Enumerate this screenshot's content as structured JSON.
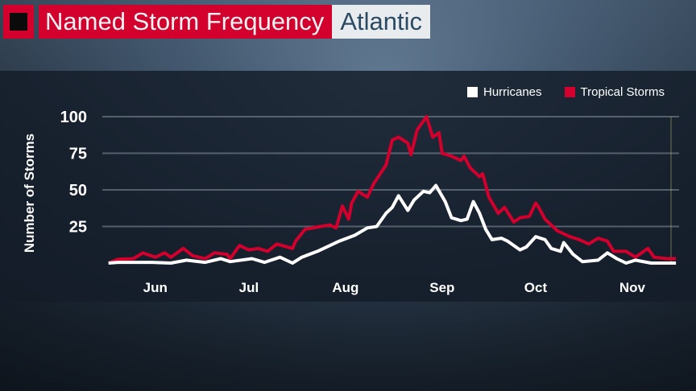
{
  "header": {
    "title": "Named Storm Frequency",
    "region": "Atlantic",
    "logo_icon": "black-square-icon"
  },
  "colors": {
    "hurricanes": "#ffffff",
    "tropical_storms": "#d3002d",
    "title_bg": "#d3002d"
  },
  "chart_data": {
    "type": "line",
    "ylabel": "Number of Storms",
    "ylim": [
      0,
      100
    ],
    "yticks": [
      25,
      50,
      75,
      100
    ],
    "xlim": [
      "05-29",
      "11-30"
    ],
    "xticks": [
      {
        "label": "Jun",
        "date": "06-15"
      },
      {
        "label": "Jul",
        "date": "07-15"
      },
      {
        "label": "Aug",
        "date": "08-15"
      },
      {
        "label": "Sep",
        "date": "09-15"
      },
      {
        "label": "Oct",
        "date": "10-15"
      },
      {
        "label": "Nov",
        "date": "11-15"
      }
    ],
    "grid": true,
    "legend_position": "top-right",
    "series": [
      {
        "name": "Hurricanes",
        "color": "#ffffff",
        "points": [
          [
            "05-31",
            0
          ],
          [
            "06-03",
            0.5
          ],
          [
            "06-08",
            0.5
          ],
          [
            "06-14",
            0.5
          ],
          [
            "06-20",
            0
          ],
          [
            "06-25",
            2
          ],
          [
            "07-01",
            0.5
          ],
          [
            "07-06",
            3
          ],
          [
            "07-09",
            1
          ],
          [
            "07-16",
            3
          ],
          [
            "07-20",
            0.5
          ],
          [
            "07-25",
            4
          ],
          [
            "07-29",
            0
          ],
          [
            "08-01",
            4
          ],
          [
            "08-06",
            8
          ],
          [
            "08-10",
            12
          ],
          [
            "08-13",
            15
          ],
          [
            "08-18",
            19
          ],
          [
            "08-22",
            24
          ],
          [
            "08-25",
            25
          ],
          [
            "08-28",
            34
          ],
          [
            "08-30",
            38
          ],
          [
            "09-01",
            46
          ],
          [
            "09-04",
            36
          ],
          [
            "09-06",
            43
          ],
          [
            "09-09",
            49
          ],
          [
            "09-11",
            48
          ],
          [
            "09-13",
            53
          ],
          [
            "09-16",
            42
          ],
          [
            "09-18",
            31
          ],
          [
            "09-21",
            29
          ],
          [
            "09-23",
            30
          ],
          [
            "09-25",
            42
          ],
          [
            "09-27",
            34
          ],
          [
            "09-29",
            23
          ],
          [
            "10-01",
            16
          ],
          [
            "10-04",
            17
          ],
          [
            "10-06",
            15
          ],
          [
            "10-10",
            9
          ],
          [
            "10-12",
            11
          ],
          [
            "10-15",
            18
          ],
          [
            "10-18",
            16
          ],
          [
            "10-20",
            10
          ],
          [
            "10-23",
            8
          ],
          [
            "10-24",
            14
          ],
          [
            "10-27",
            6
          ],
          [
            "10-30",
            1
          ],
          [
            "11-04",
            2
          ],
          [
            "11-07",
            7
          ],
          [
            "11-10",
            3
          ],
          [
            "11-13",
            0
          ],
          [
            "11-16",
            2
          ],
          [
            "11-21",
            0
          ],
          [
            "11-29",
            0
          ]
        ]
      },
      {
        "name": "Tropical Storms",
        "color": "#d3002d",
        "points": [
          [
            "05-31",
            0
          ],
          [
            "06-03",
            2.6
          ],
          [
            "06-08",
            3
          ],
          [
            "06-11",
            7
          ],
          [
            "06-15",
            4
          ],
          [
            "06-18",
            7
          ],
          [
            "06-20",
            4
          ],
          [
            "06-24",
            10
          ],
          [
            "06-27",
            5
          ],
          [
            "07-01",
            3
          ],
          [
            "07-04",
            7
          ],
          [
            "07-08",
            6
          ],
          [
            "07-09",
            3
          ],
          [
            "07-12",
            12
          ],
          [
            "07-15",
            9
          ],
          [
            "07-18",
            10
          ],
          [
            "07-21",
            8
          ],
          [
            "07-24",
            13
          ],
          [
            "07-29",
            10
          ],
          [
            "07-30",
            15
          ],
          [
            "08-02",
            23
          ],
          [
            "08-07",
            25
          ],
          [
            "08-10",
            26
          ],
          [
            "08-12",
            24
          ],
          [
            "08-14",
            39
          ],
          [
            "08-16",
            30
          ],
          [
            "08-17",
            41
          ],
          [
            "08-19",
            49
          ],
          [
            "08-22",
            45
          ],
          [
            "08-24",
            54
          ],
          [
            "08-28",
            67
          ],
          [
            "08-30",
            84
          ],
          [
            "09-01",
            86
          ],
          [
            "09-04",
            82
          ],
          [
            "09-05",
            74
          ],
          [
            "09-07",
            91
          ],
          [
            "09-10",
            100
          ],
          [
            "09-12",
            86
          ],
          [
            "09-14",
            89
          ],
          [
            "09-15",
            75
          ],
          [
            "09-18",
            73
          ],
          [
            "09-21",
            70
          ],
          [
            "09-22",
            73
          ],
          [
            "09-24",
            65
          ],
          [
            "09-27",
            59
          ],
          [
            "09-28",
            61
          ],
          [
            "09-30",
            45
          ],
          [
            "10-03",
            34
          ],
          [
            "10-05",
            38
          ],
          [
            "10-08",
            28
          ],
          [
            "10-10",
            31
          ],
          [
            "10-13",
            32
          ],
          [
            "10-15",
            41
          ],
          [
            "10-16",
            38
          ],
          [
            "10-18",
            30
          ],
          [
            "10-22",
            22
          ],
          [
            "10-26",
            18
          ],
          [
            "10-29",
            16
          ],
          [
            "11-01",
            13
          ],
          [
            "11-04",
            17
          ],
          [
            "11-07",
            15
          ],
          [
            "11-09",
            8
          ],
          [
            "11-13",
            8
          ],
          [
            "11-16",
            4
          ],
          [
            "11-20",
            10
          ],
          [
            "11-22",
            4
          ],
          [
            "11-26",
            3
          ],
          [
            "11-29",
            3
          ]
        ]
      }
    ]
  }
}
